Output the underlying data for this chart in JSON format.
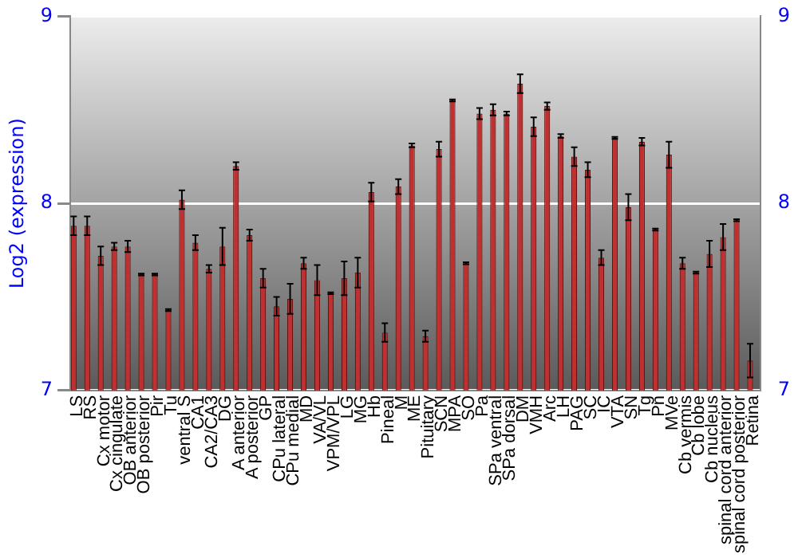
{
  "chart_data": {
    "type": "bar",
    "ylabel": "Log2 (expression)",
    "categories": [
      "LS",
      "RS",
      "Cx motor",
      "Cx cingulate",
      "OB anterior",
      "OB posterior",
      "Pir",
      "Tu",
      "ventral S",
      "CA1",
      "CA2/CA3",
      "DG",
      "A anterior",
      "A posterior",
      "GP",
      "CPu lateral",
      "CPu medial",
      "MD",
      "VA/VL",
      "VPM/VPL",
      "LG",
      "MG",
      "Hb",
      "Pineal",
      "M",
      "ME",
      "Pituitary",
      "SCN",
      "MPA",
      "SO",
      "Pa",
      "SPa ventral",
      "SPa dorsal",
      "DM",
      "VMH",
      "Arc",
      "LH",
      "PAG",
      "SC",
      "IC",
      "VTA",
      "SN",
      "Tg",
      "Pn",
      "MVe",
      "Cb vermis",
      "Cb lobe",
      "Cb nucleus",
      "spinal cord anterior",
      "spinal cord posterior",
      "Retina"
    ],
    "values": [
      7.88,
      7.88,
      7.72,
      7.77,
      7.77,
      7.62,
      7.62,
      7.43,
      8.02,
      7.79,
      7.65,
      7.77,
      8.2,
      7.83,
      7.6,
      7.45,
      7.49,
      7.68,
      7.59,
      7.52,
      7.6,
      7.63,
      8.06,
      7.31,
      8.09,
      8.31,
      7.29,
      8.29,
      8.55,
      7.68,
      8.48,
      8.5,
      8.48,
      8.64,
      8.41,
      8.52,
      8.36,
      8.25,
      8.18,
      7.71,
      8.35,
      7.98,
      8.33,
      7.86,
      8.26,
      7.68,
      7.63,
      7.73,
      7.82,
      7.91,
      7.16
    ],
    "errors": [
      0.05,
      0.05,
      0.05,
      0.02,
      0.03,
      0.005,
      0.005,
      0.005,
      0.05,
      0.04,
      0.02,
      0.1,
      0.02,
      0.03,
      0.05,
      0.05,
      0.08,
      0.03,
      0.08,
      0.005,
      0.09,
      0.08,
      0.05,
      0.05,
      0.04,
      0.01,
      0.03,
      0.04,
      0.005,
      0.005,
      0.03,
      0.03,
      0.01,
      0.05,
      0.05,
      0.02,
      0.01,
      0.05,
      0.04,
      0.04,
      0.005,
      0.07,
      0.02,
      0.005,
      0.07,
      0.03,
      0.005,
      0.07,
      0.07,
      0.005,
      0.09
    ],
    "color": "#c03030",
    "ylim": [
      7,
      9
    ],
    "yticks": [
      7,
      8,
      9
    ],
    "y2lim": [
      7,
      9
    ],
    "y2ticks": [
      7,
      8,
      9
    ],
    "grid": "y",
    "legend": false
  }
}
